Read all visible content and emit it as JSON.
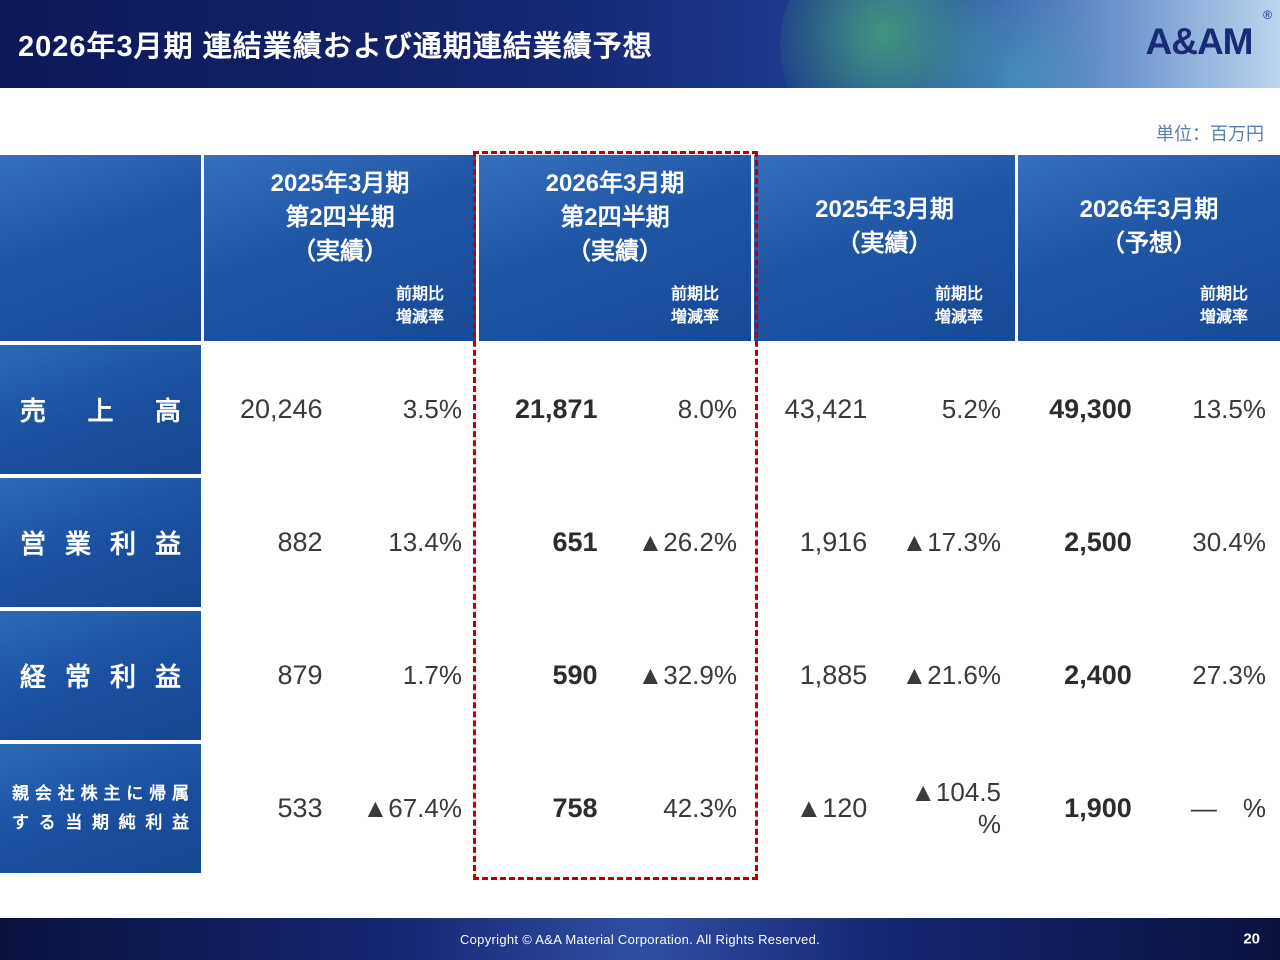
{
  "header": {
    "title": "2026年3月期 連結業績および通期連結業績予想",
    "logo_text": "A&AM",
    "logo_reg": "®"
  },
  "meta": {
    "unit_label": "単位：百万円"
  },
  "table": {
    "highlight_color": "#c00000",
    "column_groups": [
      {
        "title": "2025年3月期\n第2四半期\n（実績）",
        "sub_label": "前期比\n増減率",
        "highlighted": false
      },
      {
        "title": "2026年3月期\n第2四半期\n（実績）",
        "sub_label": "前期比\n増減率",
        "highlighted": true
      },
      {
        "title": "2025年3月期\n（実績）",
        "sub_label": "前期比\n増減率",
        "highlighted": false
      },
      {
        "title": "2026年3月期\n（予想）",
        "sub_label": "前期比\n増減率",
        "highlighted": false
      }
    ],
    "rows": [
      {
        "label": "売 上 高",
        "cells": [
          "20,246",
          "3.5%",
          "21,871",
          "8.0%",
          "43,421",
          "5.2%",
          "49,300",
          "13.5%"
        ]
      },
      {
        "label": "営 業 利 益",
        "cells": [
          "882",
          "13.4%",
          "651",
          "▲26.2%",
          "1,916",
          "▲17.3%",
          "2,500",
          "30.4%"
        ]
      },
      {
        "label": "経 常 利 益",
        "cells": [
          "879",
          "1.7%",
          "590",
          "▲32.9%",
          "1,885",
          "▲21.6%",
          "2,400",
          "27.3%"
        ]
      },
      {
        "label": "親会社株主に帰属\nする当期純利益",
        "cells": [
          "533",
          "▲67.4%",
          "758",
          "42.3%",
          "▲120",
          "▲104.5\n%",
          "1,900",
          "―　%"
        ]
      }
    ]
  },
  "footer": {
    "copyright": "Copyright © A&A Material Corporation. All Rights Reserved.",
    "page_number": "20"
  }
}
